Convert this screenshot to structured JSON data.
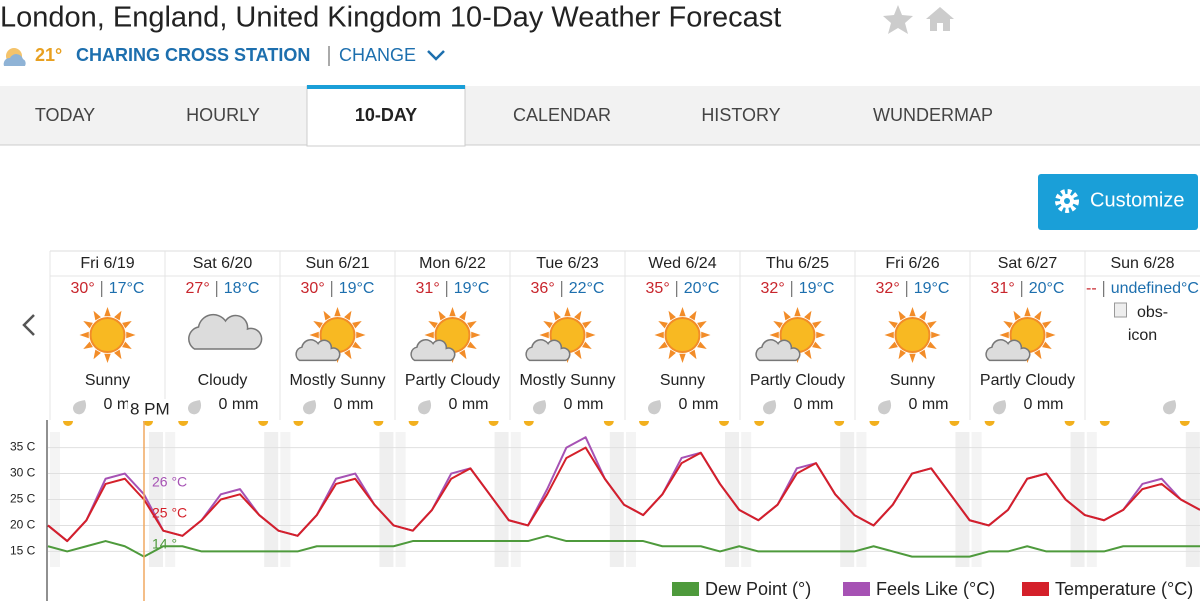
{
  "header": {
    "title": "London, England, United Kingdom 10-Day Weather Forecast",
    "current_temp": "21°",
    "station": "CHARING CROSS STATION",
    "change": "CHANGE"
  },
  "tabs": [
    {
      "label": "TODAY",
      "active": false
    },
    {
      "label": "HOURLY",
      "active": false
    },
    {
      "label": "10-DAY",
      "active": true
    },
    {
      "label": "CALENDAR",
      "active": false
    },
    {
      "label": "HISTORY",
      "active": false
    },
    {
      "label": "WUNDERMAP",
      "active": false
    }
  ],
  "customize": "Customize",
  "days": [
    {
      "day": "Fri 6/19",
      "high": "30°",
      "low": "17°C",
      "condition": "Sunny",
      "precip": "0 mm"
    },
    {
      "day": "Sat 6/20",
      "high": "27°",
      "low": "18°C",
      "condition": "Cloudy",
      "precip": "0 mm"
    },
    {
      "day": "Sun 6/21",
      "high": "30°",
      "low": "19°C",
      "condition": "Mostly Sunny",
      "precip": "0 mm"
    },
    {
      "day": "Mon 6/22",
      "high": "31°",
      "low": "19°C",
      "condition": "Partly Cloudy",
      "precip": "0 mm"
    },
    {
      "day": "Tue 6/23",
      "high": "36°",
      "low": "22°C",
      "condition": "Mostly Sunny",
      "precip": "0 mm"
    },
    {
      "day": "Wed 6/24",
      "high": "35°",
      "low": "20°C",
      "condition": "Sunny",
      "precip": "0 mm"
    },
    {
      "day": "Thu 6/25",
      "high": "32°",
      "low": "19°C",
      "condition": "Partly Cloudy",
      "precip": "0 mm"
    },
    {
      "day": "Fri 6/26",
      "high": "32°",
      "low": "19°C",
      "condition": "Sunny",
      "precip": "0 mm"
    },
    {
      "day": "Sat 6/27",
      "high": "31°",
      "low": "20°C",
      "condition": "Partly Cloudy",
      "precip": "0 mm"
    },
    {
      "day": "Sun 6/28",
      "high": "--",
      "low": "undefined°C",
      "icon_alt": "obs-icon"
    }
  ],
  "chart_data": {
    "type": "line",
    "x": [
      0,
      4,
      8,
      12,
      16,
      20,
      24,
      28,
      32,
      36,
      40,
      44,
      48,
      52,
      56,
      60,
      64,
      68,
      72,
      76,
      80,
      84,
      88,
      92,
      96,
      100,
      104,
      108,
      112,
      116,
      120,
      124,
      128,
      132,
      136,
      140,
      144,
      148,
      152,
      156,
      160,
      164,
      168,
      172,
      176,
      180,
      184,
      188,
      192,
      196,
      200,
      204,
      208,
      212,
      216,
      220,
      224,
      228,
      232,
      236,
      240
    ],
    "xlim": [
      0,
      240
    ],
    "ylim": [
      12,
      38
    ],
    "yticks": [
      {
        "value": 15,
        "label": "15 C"
      },
      {
        "value": 20,
        "label": "20 C"
      },
      {
        "value": 25,
        "label": "25 C"
      },
      {
        "value": 30,
        "label": "30 C"
      },
      {
        "value": 35,
        "label": "35 C"
      }
    ],
    "grid": true,
    "cursor": {
      "x": 20,
      "label": "8 PM"
    },
    "series": [
      {
        "name": "Dew Point (°)",
        "color": "#4e9a3c",
        "cursor_label": "14 °",
        "values": [
          16,
          15,
          16,
          17,
          16,
          14,
          16,
          16,
          15,
          15,
          15,
          15,
          15,
          15,
          16,
          16,
          16,
          16,
          16,
          17,
          17,
          17,
          17,
          17,
          17,
          17,
          18,
          17,
          17,
          17,
          17,
          17,
          16,
          16,
          16,
          15,
          16,
          15,
          15,
          15,
          15,
          15,
          15,
          16,
          15,
          14,
          14,
          14,
          14,
          15,
          15,
          16,
          15,
          15,
          15,
          15,
          16,
          16,
          16,
          16,
          16
        ]
      },
      {
        "name": "Feels Like (°C)",
        "color": "#a652b4",
        "cursor_label": "26 °C",
        "values": [
          20,
          17,
          21,
          29,
          30,
          26,
          19,
          18,
          21,
          26,
          27,
          22,
          19,
          18,
          22,
          29,
          30,
          24,
          20,
          19,
          23,
          30,
          31,
          26,
          21,
          20,
          27,
          35,
          37,
          29,
          24,
          22,
          26,
          33,
          34,
          28,
          23,
          21,
          24,
          31,
          32,
          26,
          22,
          20,
          24,
          30,
          31,
          26,
          21,
          20,
          23,
          29,
          30,
          25,
          22,
          21,
          23,
          28,
          29,
          25,
          23
        ]
      },
      {
        "name": "Temperature (°C)",
        "color": "#d4202a",
        "cursor_label": "25 °C",
        "values": [
          20,
          17,
          21,
          28,
          29,
          25,
          19,
          18,
          21,
          25,
          26,
          22,
          19,
          18,
          22,
          28,
          29,
          24,
          20,
          19,
          23,
          29,
          31,
          26,
          21,
          20,
          26,
          33,
          35,
          29,
          24,
          22,
          26,
          32,
          34,
          28,
          23,
          21,
          24,
          30,
          32,
          26,
          22,
          20,
          24,
          30,
          31,
          26,
          21,
          20,
          23,
          29,
          30,
          25,
          22,
          21,
          23,
          27,
          28,
          25,
          23
        ]
      }
    ]
  }
}
